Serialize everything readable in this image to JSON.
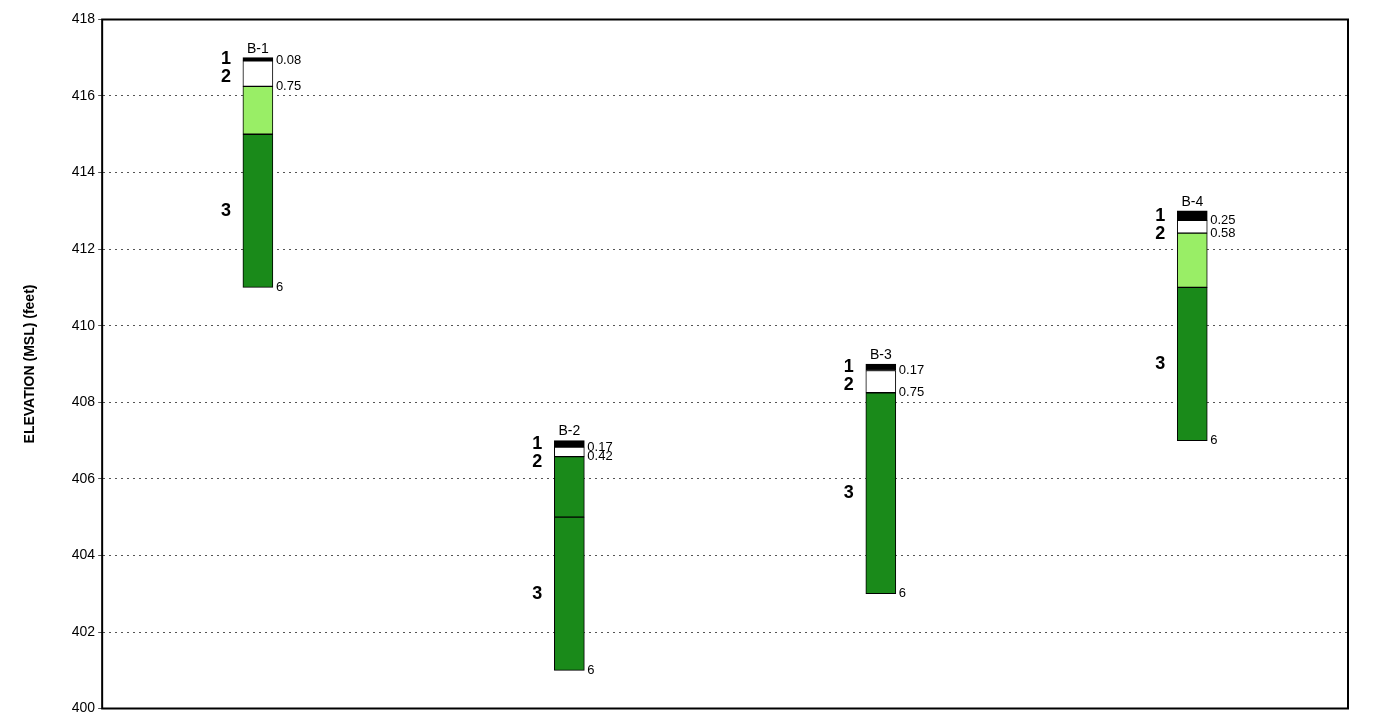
{
  "chart_data": {
    "type": "bar",
    "ylabel": "ELEVATION (MSL) (feet)",
    "categories": [
      "B-1",
      "B-2",
      "B-3",
      "B-4"
    ],
    "series": [
      {
        "name": "3",
        "color": "#1a8a1a",
        "base": [
          411,
          401,
          403,
          407
        ],
        "values": [
          4,
          4,
          5.25,
          4
        ]
      },
      {
        "colors": [
          "#99ee66",
          "#1a8a1a",
          null,
          "#99ee66"
        ],
        "base": [
          415,
          405,
          null,
          411
        ],
        "values": [
          1.25,
          1.58,
          null,
          1.42
        ]
      },
      {
        "name": "2",
        "color": "#ffffff",
        "base": [
          416.25,
          406.58,
          408.25,
          412.42
        ],
        "values": [
          0.67,
          0.25,
          0.58,
          0.33
        ]
      },
      {
        "name": "1",
        "color": "#000000",
        "base": [
          416.92,
          406.83,
          408.83,
          412.75
        ],
        "values": [
          0.08,
          0.17,
          0.17,
          0.25
        ]
      }
    ],
    "ylim": [
      400,
      418
    ],
    "yticks": [
      400,
      402,
      404,
      406,
      408,
      410,
      412,
      414,
      416,
      418
    ],
    "grid": "y",
    "line_style": "dotted",
    "tick_labels": "y",
    "annotations": [
      {
        "text": "0.08",
        "x": "B-1",
        "y": 416.92
      },
      {
        "text": "0.75",
        "x": "B-1",
        "y": 416.25
      },
      {
        "text": "6",
        "x": "B-1",
        "y": 411
      },
      {
        "text": "0.17",
        "x": "B-2",
        "y": 406.83
      },
      {
        "text": "0.42",
        "x": "B-2",
        "y": 406.58
      },
      {
        "text": "6",
        "x": "B-2",
        "y": 401
      },
      {
        "text": "0.17",
        "x": "B-3",
        "y": 408.83
      },
      {
        "text": "0.75",
        "x": "B-3",
        "y": 408.25
      },
      {
        "text": "6",
        "x": "B-3",
        "y": 403
      },
      {
        "text": "0.25",
        "x": "B-4",
        "y": 412.75
      },
      {
        "text": "0.58",
        "x": "B-4",
        "y": 412.42
      },
      {
        "text": "6",
        "x": "B-4",
        "y": 407
      }
    ]
  }
}
